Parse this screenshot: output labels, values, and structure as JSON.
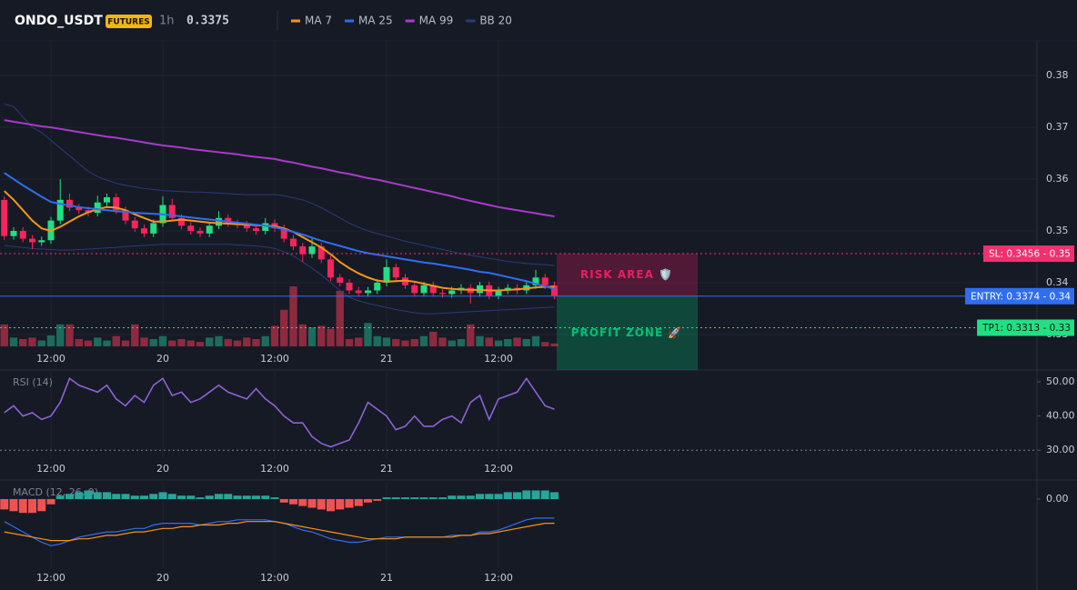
{
  "chart_data": [
    {
      "type": "candlestick",
      "title": "ONDO_USDT",
      "badge": "FUTURES",
      "interval": "1h",
      "last_price": 0.3375,
      "last_price_color": "#f6255d",
      "categories": [
        null,
        null,
        null,
        null,
        null,
        "12:00",
        null,
        null,
        null,
        null,
        null,
        null,
        null,
        null,
        null,
        null,
        null,
        "20",
        null,
        null,
        null,
        null,
        null,
        null,
        null,
        null,
        null,
        null,
        null,
        "12:00",
        null,
        null,
        null,
        null,
        null,
        null,
        null,
        null,
        null,
        null,
        null,
        "21",
        null,
        null,
        null,
        null,
        null,
        null,
        null,
        null,
        null,
        null,
        null,
        "12:00",
        null,
        null,
        null,
        null,
        null,
        null
      ],
      "open": [
        0.356,
        0.349,
        0.35,
        0.3485,
        0.3478,
        0.3482,
        0.352,
        0.356,
        0.3545,
        0.354,
        0.3535,
        0.3555,
        0.3565,
        0.354,
        0.352,
        0.3505,
        0.3495,
        0.3515,
        0.355,
        0.3525,
        0.351,
        0.35,
        0.3495,
        0.351,
        0.3525,
        0.3515,
        0.3512,
        0.3505,
        0.35,
        0.3515,
        0.3505,
        0.3485,
        0.347,
        0.3455,
        0.347,
        0.3445,
        0.341,
        0.34,
        0.3385,
        0.338,
        0.3385,
        0.34,
        0.343,
        0.341,
        0.3395,
        0.338,
        0.3395,
        0.338,
        0.3378,
        0.3385,
        0.339,
        0.338,
        0.3395,
        0.3375,
        0.3385,
        0.339,
        0.3385,
        0.3395,
        0.341,
        0.3395
      ],
      "high": [
        0.3567,
        0.3507,
        0.3507,
        0.3492,
        0.3489,
        0.3527,
        0.36,
        0.3572,
        0.3552,
        0.3547,
        0.3568,
        0.3572,
        0.3572,
        0.3547,
        0.3527,
        0.3512,
        0.3522,
        0.3567,
        0.3562,
        0.3532,
        0.3517,
        0.3507,
        0.3517,
        0.3538,
        0.3532,
        0.3522,
        0.3519,
        0.3512,
        0.3525,
        0.3522,
        0.3512,
        0.3492,
        0.3477,
        0.3485,
        0.3477,
        0.3452,
        0.3417,
        0.3407,
        0.3392,
        0.3392,
        0.3407,
        0.3445,
        0.3437,
        0.3417,
        0.3402,
        0.3402,
        0.3402,
        0.3387,
        0.3392,
        0.3397,
        0.3397,
        0.3402,
        0.3402,
        0.3392,
        0.3397,
        0.3397,
        0.3402,
        0.3425,
        0.3417,
        0.3402
      ],
      "low": [
        0.3483,
        0.3483,
        0.3478,
        0.3465,
        0.3471,
        0.3475,
        0.3513,
        0.3538,
        0.3533,
        0.3528,
        0.3528,
        0.3548,
        0.3533,
        0.3513,
        0.3498,
        0.3488,
        0.3488,
        0.3508,
        0.3518,
        0.3503,
        0.3493,
        0.3488,
        0.3488,
        0.3503,
        0.3508,
        0.3505,
        0.3498,
        0.3493,
        0.3493,
        0.3498,
        0.3478,
        0.3463,
        0.344,
        0.3448,
        0.3438,
        0.3403,
        0.3393,
        0.3378,
        0.3373,
        0.3373,
        0.3378,
        0.3393,
        0.3403,
        0.3388,
        0.3373,
        0.3373,
        0.3373,
        0.3371,
        0.3371,
        0.3378,
        0.336,
        0.3373,
        0.3368,
        0.3368,
        0.3378,
        0.3378,
        0.3378,
        0.3388,
        0.3388,
        0.3368
      ],
      "close": [
        0.349,
        0.35,
        0.3485,
        0.3478,
        0.3482,
        0.352,
        0.356,
        0.3545,
        0.354,
        0.3535,
        0.3555,
        0.3565,
        0.354,
        0.352,
        0.3505,
        0.3495,
        0.3515,
        0.355,
        0.3525,
        0.351,
        0.35,
        0.3495,
        0.351,
        0.3525,
        0.3515,
        0.3512,
        0.3505,
        0.35,
        0.3515,
        0.3505,
        0.3485,
        0.347,
        0.3455,
        0.347,
        0.3445,
        0.341,
        0.34,
        0.3385,
        0.338,
        0.3385,
        0.34,
        0.343,
        0.341,
        0.3395,
        0.338,
        0.3395,
        0.338,
        0.3378,
        0.3385,
        0.339,
        0.338,
        0.3395,
        0.3375,
        0.3385,
        0.339,
        0.3385,
        0.3395,
        0.341,
        0.3395,
        0.3375
      ],
      "up_color": "#20e083",
      "down_color": "#f6255d",
      "volume_up_color": "#1c6b5c",
      "volume_down_color": "#8e2a3f",
      "volume": [
        30,
        12,
        10,
        12,
        8,
        15,
        30,
        30,
        10,
        8,
        12,
        8,
        14,
        8,
        30,
        12,
        10,
        14,
        8,
        10,
        8,
        6,
        12,
        14,
        10,
        8,
        12,
        10,
        14,
        28,
        50,
        82,
        30,
        26,
        28,
        24,
        76,
        10,
        12,
        32,
        14,
        12,
        10,
        8,
        10,
        14,
        20,
        12,
        8,
        10,
        30,
        14,
        12,
        8,
        10,
        12,
        10,
        14,
        6,
        4
      ],
      "series": [
        {
          "name": "MA 7",
          "color": "#f7931a",
          "values": [
            0.3577,
            0.356,
            0.354,
            0.352,
            0.3505,
            0.35,
            0.3508,
            0.3518,
            0.3528,
            0.3536,
            0.3542,
            0.3546,
            0.3545,
            0.354,
            0.3532,
            0.3525,
            0.3518,
            0.3518,
            0.352,
            0.3522,
            0.352,
            0.3518,
            0.3516,
            0.3515,
            0.3514,
            0.3513,
            0.3512,
            0.3511,
            0.351,
            0.3509,
            0.3505,
            0.3498,
            0.3488,
            0.3478,
            0.3468,
            0.3455,
            0.344,
            0.3428,
            0.3418,
            0.341,
            0.3404,
            0.3402,
            0.3403,
            0.3404,
            0.3402,
            0.3398,
            0.3394,
            0.339,
            0.3388,
            0.3387,
            0.3386,
            0.3386,
            0.3385,
            0.3385,
            0.3386,
            0.3387,
            0.3389,
            0.3391,
            0.3392,
            0.3392
          ]
        },
        {
          "name": "MA 25",
          "color": "#2f6ef0",
          "values": [
            0.3612,
            0.36,
            0.3588,
            0.3577,
            0.3566,
            0.3556,
            0.3552,
            0.3549,
            0.3546,
            0.3544,
            0.3542,
            0.354,
            0.3538,
            0.3537,
            0.3535,
            0.3534,
            0.3533,
            0.3532,
            0.353,
            0.3528,
            0.3526,
            0.3524,
            0.3522,
            0.352,
            0.3518,
            0.3516,
            0.3514,
            0.3512,
            0.351,
            0.3507,
            0.3503,
            0.3498,
            0.3493,
            0.3487,
            0.3481,
            0.3476,
            0.3471,
            0.3466,
            0.3461,
            0.3457,
            0.3454,
            0.3451,
            0.3448,
            0.3445,
            0.3442,
            0.3439,
            0.3437,
            0.3434,
            0.3431,
            0.3428,
            0.3425,
            0.3421,
            0.3419,
            0.3415,
            0.3411,
            0.3407,
            0.3403,
            0.3398,
            0.3393,
            0.3388
          ]
        },
        {
          "name": "MA 99",
          "color": "#a83bc9",
          "values": [
            0.3714,
            0.3711,
            0.3708,
            0.3705,
            0.3702,
            0.37,
            0.3697,
            0.3694,
            0.3691,
            0.3688,
            0.3685,
            0.3682,
            0.368,
            0.3677,
            0.3674,
            0.3671,
            0.3668,
            0.3665,
            0.3663,
            0.3661,
            0.3658,
            0.3656,
            0.3654,
            0.3652,
            0.365,
            0.3648,
            0.3645,
            0.3643,
            0.3641,
            0.3639,
            0.3635,
            0.3632,
            0.3628,
            0.3624,
            0.3621,
            0.3617,
            0.3613,
            0.361,
            0.3606,
            0.3602,
            0.3599,
            0.3595,
            0.3591,
            0.3587,
            0.3583,
            0.3579,
            0.3575,
            0.3571,
            0.3567,
            0.3562,
            0.3558,
            0.3554,
            0.355,
            0.3546,
            0.3543,
            0.354,
            0.3537,
            0.3534,
            0.3531,
            0.3528
          ]
        }
      ],
      "bands": {
        "name": "BB 20",
        "color": "#2c3a7a",
        "upper": [
          0.3745,
          0.374,
          0.372,
          0.37,
          0.369,
          0.3675,
          0.366,
          0.3645,
          0.363,
          0.3615,
          0.3605,
          0.3598,
          0.3592,
          0.3588,
          0.3585,
          0.3582,
          0.358,
          0.3578,
          0.3577,
          0.3576,
          0.3575,
          0.3575,
          0.3574,
          0.3573,
          0.3572,
          0.3571,
          0.357,
          0.357,
          0.357,
          0.357,
          0.3568,
          0.3564,
          0.356,
          0.3553,
          0.3545,
          0.3535,
          0.3525,
          0.3515,
          0.3507,
          0.35,
          0.3495,
          0.349,
          0.3485,
          0.348,
          0.3476,
          0.3472,
          0.3468,
          0.3464,
          0.346,
          0.3456,
          0.3453,
          0.345,
          0.3447,
          0.3444,
          0.3441,
          0.3439,
          0.3437,
          0.3436,
          0.3435,
          0.3433
        ],
        "lower": [
          0.3472,
          0.347,
          0.3468,
          0.3466,
          0.3465,
          0.3464,
          0.3463,
          0.3463,
          0.3464,
          0.3465,
          0.3466,
          0.3467,
          0.3468,
          0.347,
          0.3471,
          0.3472,
          0.3473,
          0.3474,
          0.3474,
          0.3474,
          0.3474,
          0.3474,
          0.3474,
          0.3474,
          0.3474,
          0.3473,
          0.3472,
          0.3471,
          0.3469,
          0.3466,
          0.346,
          0.3452,
          0.344,
          0.3428,
          0.3415,
          0.34,
          0.3385,
          0.3372,
          0.3365,
          0.336,
          0.3356,
          0.3352,
          0.3348,
          0.3345,
          0.3342,
          0.334,
          0.334,
          0.3341,
          0.3342,
          0.3343,
          0.3344,
          0.3345,
          0.3346,
          0.3347,
          0.3348,
          0.3349,
          0.335,
          0.3351,
          0.3352,
          0.3353
        ]
      },
      "levels": [
        {
          "label": "SL: 0.3456 - 0.35",
          "value": 0.3456,
          "color": "#f2306e",
          "text_color": "#ffffff",
          "style": "dotted"
        },
        {
          "label": "ENTRY: 0.3374 - 0.34",
          "value": 0.3374,
          "color": "#2f6ef0",
          "text_color": "#ffffff",
          "style": "solid"
        },
        {
          "label": "TP1: 0.3313 - 0.33",
          "value": 0.3313,
          "color": "#20e083",
          "text_color": "#0b1a12",
          "style": "dotted"
        }
      ],
      "zones": [
        {
          "label": "RISK AREA 🛡️",
          "from": 0.3456,
          "to": 0.3374,
          "color": "#e91e63"
        },
        {
          "label": "PROFIT ZONE 🚀",
          "from": 0.3374,
          "color": "#00c176"
        }
      ],
      "ylim": [
        0.3277,
        0.3867
      ],
      "yticks": [
        0.33,
        0.34,
        0.35,
        0.36,
        0.37,
        0.38
      ],
      "grid": true
    },
    {
      "type": "line",
      "title": "RSI (14)",
      "color": "#8b63d6",
      "categories": [
        null,
        null,
        null,
        null,
        null,
        "12:00",
        null,
        null,
        null,
        null,
        null,
        null,
        null,
        null,
        null,
        null,
        null,
        "20",
        null,
        null,
        null,
        null,
        null,
        null,
        null,
        null,
        null,
        null,
        null,
        "12:00",
        null,
        null,
        null,
        null,
        null,
        null,
        null,
        null,
        null,
        null,
        null,
        "21",
        null,
        null,
        null,
        null,
        null,
        null,
        null,
        null,
        null,
        null,
        null,
        "12:00",
        null,
        null,
        null,
        null,
        null,
        null
      ],
      "values": [
        41,
        43,
        40,
        41,
        39,
        40,
        44,
        51,
        49,
        48,
        47,
        49,
        45,
        43,
        46,
        44,
        49,
        51,
        46,
        47,
        44,
        45,
        47,
        49,
        47,
        46,
        45,
        48,
        45,
        43,
        40,
        38,
        38,
        34,
        32,
        31,
        32,
        33,
        38,
        44,
        42,
        40,
        36,
        37,
        40,
        37,
        37,
        39,
        40,
        38,
        44,
        46,
        39,
        45,
        46,
        47,
        51,
        47,
        43,
        42
      ],
      "guide": 30,
      "ylim": [
        27.4,
        53.2
      ],
      "yticks": [
        {
          "value": 30,
          "label": "30.00"
        },
        {
          "value": 40,
          "label": "40.00"
        },
        {
          "value": 50,
          "label": "50.00"
        }
      ]
    },
    {
      "type": "macd",
      "title": "MACD (12, 26, 9)",
      "pos_color": "#26a69a",
      "neg_color": "#ef5350",
      "categories": [
        null,
        null,
        null,
        null,
        null,
        "12:00",
        null,
        null,
        null,
        null,
        null,
        null,
        null,
        null,
        null,
        null,
        null,
        "20",
        null,
        null,
        null,
        null,
        null,
        null,
        null,
        null,
        null,
        null,
        null,
        "12:00",
        null,
        null,
        null,
        null,
        null,
        null,
        null,
        null,
        null,
        null,
        null,
        "21",
        null,
        null,
        null,
        null,
        null,
        null,
        null,
        null,
        null,
        null,
        null,
        "12:00",
        null,
        null,
        null,
        null,
        null,
        null
      ],
      "histogram": [
        -0.0006,
        -0.0007,
        -0.0008,
        -0.0008,
        -0.0007,
        -0.0003,
        0.0002,
        0.0003,
        0.0004,
        0.0005,
        0.0004,
        0.0004,
        0.0003,
        0.0003,
        0.0002,
        0.0002,
        0.0003,
        0.0004,
        0.0003,
        0.0002,
        0.0002,
        0.0001,
        0.0002,
        0.0003,
        0.0003,
        0.0002,
        0.0002,
        0.0002,
        0.0002,
        0.0001,
        -0.0002,
        -0.0003,
        -0.0004,
        -0.0005,
        -0.0006,
        -0.0007,
        -0.0006,
        -0.0005,
        -0.0004,
        -0.0002,
        -0.0001,
        0.0001,
        0.0001,
        0.0001,
        0.0001,
        0.0001,
        0.0001,
        0.0001,
        0.0002,
        0.0002,
        0.0002,
        0.0003,
        0.0003,
        0.0003,
        0.0004,
        0.0004,
        0.0005,
        0.0005,
        0.0005,
        0.0004
      ],
      "series": [
        {
          "color": "#2f6ef0",
          "values": [
            -0.0013,
            -0.0016,
            -0.0019,
            -0.0022,
            -0.0025,
            -0.0027,
            -0.0026,
            -0.0024,
            -0.0022,
            -0.0021,
            -0.002,
            -0.0019,
            -0.0019,
            -0.0018,
            -0.0017,
            -0.0017,
            -0.0015,
            -0.0014,
            -0.0014,
            -0.0014,
            -0.0014,
            -0.0015,
            -0.0014,
            -0.0013,
            -0.0013,
            -0.0012,
            -0.0012,
            -0.0012,
            -0.0012,
            -0.0013,
            -0.0014,
            -0.0016,
            -0.0018,
            -0.0019,
            -0.0021,
            -0.0023,
            -0.0024,
            -0.0025,
            -0.0025,
            -0.0024,
            -0.0023,
            -0.0022,
            -0.0022,
            -0.0022,
            -0.0022,
            -0.0022,
            -0.0022,
            -0.0022,
            -0.0021,
            -0.0021,
            -0.0021,
            -0.0019,
            -0.0019,
            -0.0018,
            -0.0016,
            -0.0014,
            -0.0012,
            -0.0011,
            -0.0011,
            -0.0011
          ]
        },
        {
          "color": "#f7931a",
          "values": [
            -0.0019,
            -0.002,
            -0.0021,
            -0.0022,
            -0.0023,
            -0.0024,
            -0.0024,
            -0.0024,
            -0.0023,
            -0.0023,
            -0.0022,
            -0.0021,
            -0.0021,
            -0.002,
            -0.0019,
            -0.0019,
            -0.0018,
            -0.0017,
            -0.0017,
            -0.0016,
            -0.0016,
            -0.0015,
            -0.0015,
            -0.0015,
            -0.0014,
            -0.0014,
            -0.0013,
            -0.0013,
            -0.0013,
            -0.0013,
            -0.0014,
            -0.0015,
            -0.0016,
            -0.0017,
            -0.0018,
            -0.0019,
            -0.002,
            -0.0021,
            -0.0022,
            -0.0023,
            -0.0023,
            -0.0023,
            -0.0023,
            -0.0022,
            -0.0022,
            -0.0022,
            -0.0022,
            -0.0022,
            -0.0022,
            -0.0021,
            -0.0021,
            -0.002,
            -0.002,
            -0.0019,
            -0.0018,
            -0.0017,
            -0.0016,
            -0.0015,
            -0.0014,
            -0.0014
          ]
        }
      ],
      "ylim": [
        -0.004,
        0.001
      ],
      "yticks": [
        {
          "value": 0,
          "label": "0.00"
        }
      ]
    }
  ]
}
